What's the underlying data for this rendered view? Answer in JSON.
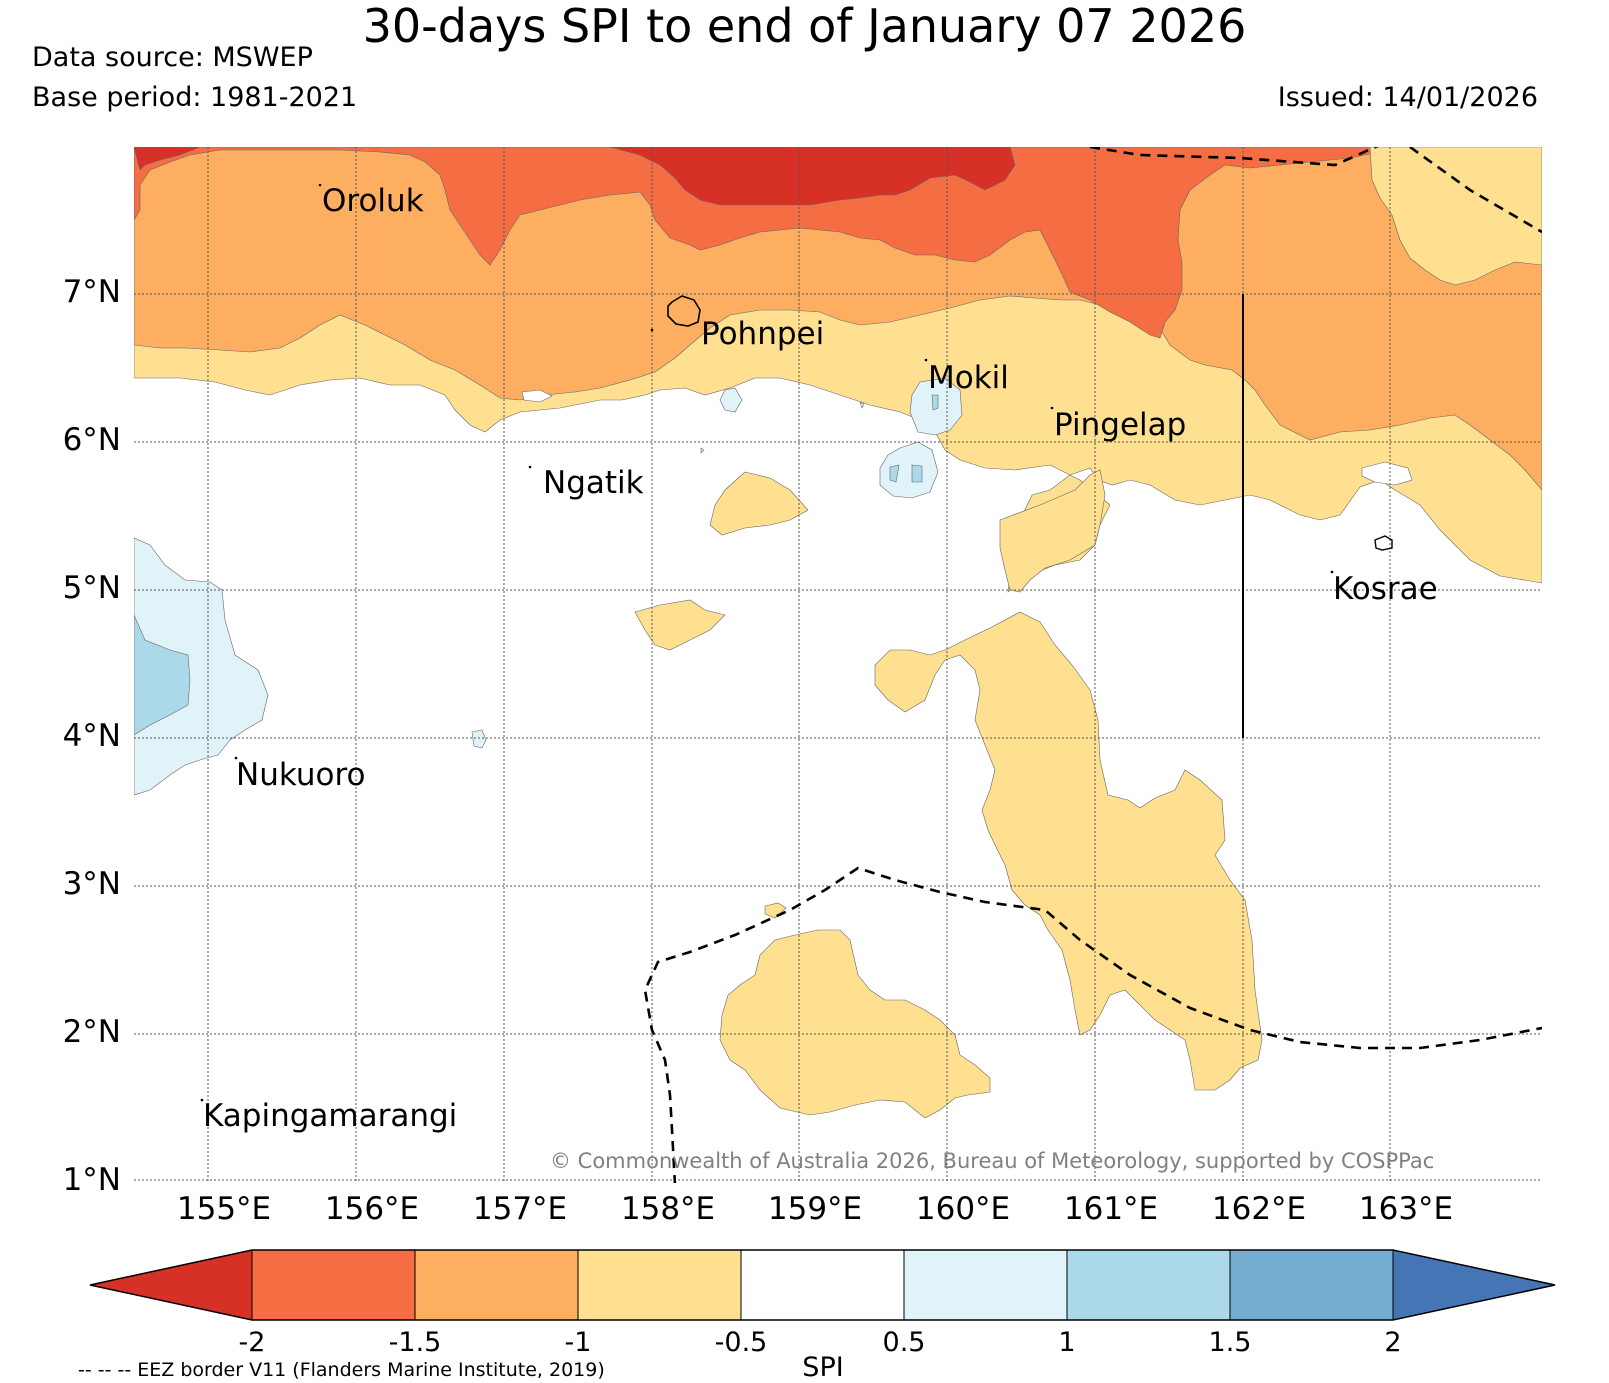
{
  "header": {
    "title": "30-days SPI to end of January 07 2026",
    "data_source": "Data source: MSWEP",
    "base_period": "Base period: 1981-2021",
    "issued": "Issued: 14/01/2026"
  },
  "map": {
    "lat_labels": [
      "7°N",
      "6°N",
      "5°N",
      "4°N",
      "3°N",
      "2°N",
      "1°N"
    ],
    "lon_labels": [
      "155°E",
      "156°E",
      "157°E",
      "158°E",
      "159°E",
      "160°E",
      "161°E",
      "162°E",
      "163°E"
    ],
    "places": [
      "Oroluk",
      "Pohnpei",
      "Mokil",
      "Pingelap",
      "Ngatik",
      "Kosrae",
      "Nukuoro",
      "Kapingamarangi"
    ],
    "copyright": "© Commonwealth of Australia 2026, Bureau of Meteorology, supported by COSPPac"
  },
  "colorbar": {
    "label": "SPI",
    "ticks": [
      "-2",
      "-1.5",
      "-1",
      "-0.5",
      "0.5",
      "1",
      "1.5",
      "2"
    ],
    "colors": {
      "below_-2": "#d73027",
      "-2_to_-1.5": "#f46d43",
      "-1.5_to_-1": "#fdae61",
      "-1_to_-0.5": "#fee090",
      "-0.5_to_0.5": "#ffffff",
      "0.5_to_1": "#e0f3f8",
      "1_to_1.5": "#abd9e9",
      "1.5_to_2": "#74add1",
      "above_2": "#4575b4"
    }
  },
  "legend": {
    "eez_note": "-- -- -- EEZ border V11 (Flanders Marine Institute, 2019)"
  }
}
